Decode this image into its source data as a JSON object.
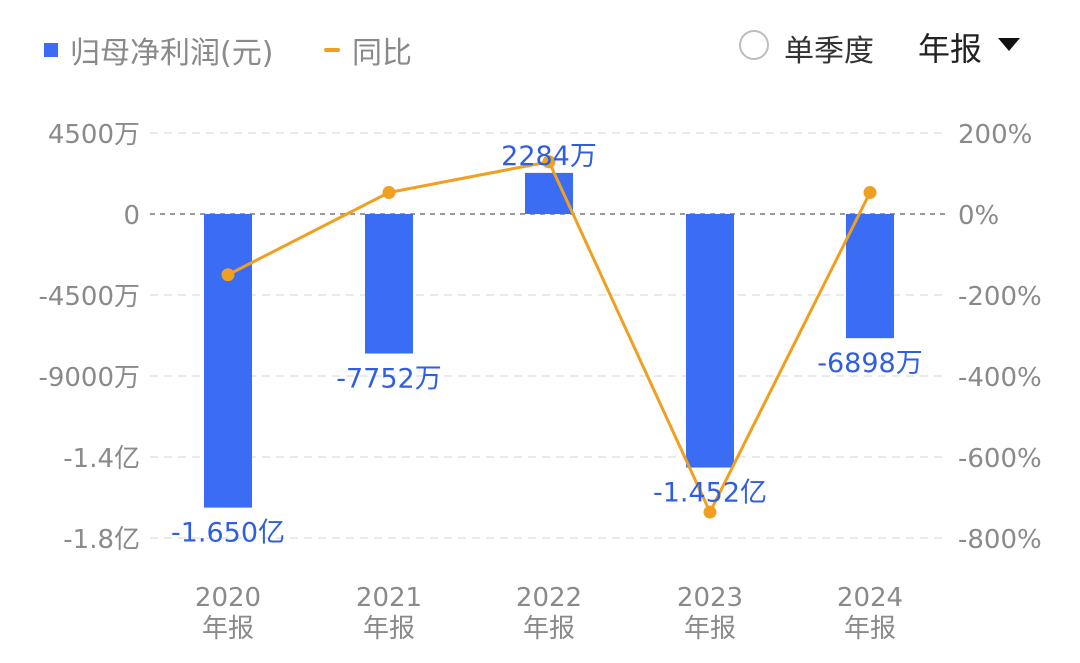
{
  "legend": {
    "bar_label": "归母净利润(元)",
    "line_label": "同比"
  },
  "controls": {
    "quarter_toggle_label": "单季度",
    "period_select_label": "年报"
  },
  "colors": {
    "bar": "#3a6cf4",
    "line": "#f0a020",
    "bar_label": "#2f5fe0",
    "axis_text": "#8a8a8a",
    "grid": "#e3e3e3",
    "zero_line": "#9a9a9a"
  },
  "chart_data": {
    "type": "bar",
    "categories": [
      "2020\n年报",
      "2021\n年报",
      "2022\n年报",
      "2023\n年报",
      "2024\n年报"
    ],
    "series": [
      {
        "name": "归母净利润(元)",
        "type": "bar",
        "axis": "left",
        "values": [
          -165000000,
          -77520000,
          22840000,
          -145200000,
          -68980000
        ],
        "data_labels": [
          "-1.650亿",
          "-7752万",
          "2284万",
          "-1.452亿",
          "-6898万"
        ]
      },
      {
        "name": "同比",
        "type": "line",
        "axis": "right",
        "values": [
          -150,
          53,
          129,
          -736,
          53
        ]
      }
    ],
    "left_axis": {
      "ylim": [
        -180000000,
        45000000
      ],
      "ticks": [
        45000000,
        0,
        -45000000,
        -90000000,
        -140000000,
        -180000000
      ],
      "tick_labels": [
        "4500万",
        "0",
        "-4500万",
        "-9000万",
        "-1.4亿",
        "-1.8亿"
      ]
    },
    "right_axis": {
      "ylim": [
        -800,
        200
      ],
      "ticks": [
        200,
        0,
        -200,
        -400,
        -600,
        -800
      ],
      "tick_labels": [
        "200%",
        "0%",
        "-200%",
        "-400%",
        "-600%",
        "-800%"
      ]
    },
    "x_tick_labels": [
      {
        "year": "2020",
        "period": "年报"
      },
      {
        "year": "2021",
        "period": "年报"
      },
      {
        "year": "2022",
        "period": "年报"
      },
      {
        "year": "2023",
        "period": "年报"
      },
      {
        "year": "2024",
        "period": "年报"
      }
    ],
    "grid": true
  }
}
